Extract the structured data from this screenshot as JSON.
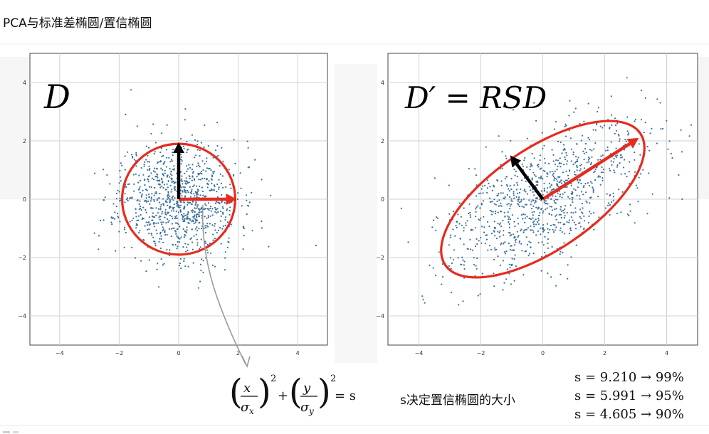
{
  "page": {
    "title": "PCA与标准差椭圆/置信椭圆"
  },
  "panels": [
    {
      "id": "left",
      "label": "D",
      "ellipse_color": "#e62b1e",
      "arrow_colors": {
        "long": "#e62b1e",
        "short": "#000000"
      }
    },
    {
      "id": "right",
      "label": "D′ = RSD",
      "ellipse_color": "#e62b1e",
      "arrow_colors": {
        "long": "#e62b1e",
        "short": "#000000"
      }
    }
  ],
  "chart_data": [
    {
      "type": "scatter",
      "panel": "left",
      "x_ticks": [
        "−4",
        "−2",
        "0",
        "2",
        "4"
      ],
      "y_ticks": [
        "4",
        "2",
        "0",
        "−2",
        "−4"
      ],
      "xlim": [
        -5,
        5
      ],
      "ylim": [
        -5,
        5
      ],
      "grid": true,
      "point_color": "#3b6f9a",
      "distribution": {
        "sigma_x": 1.0,
        "sigma_y": 1.0,
        "rotation_deg": 0,
        "count": 1000
      },
      "ellipse": {
        "cx": 0,
        "cy": 0,
        "rx": 1.9,
        "ry": 1.9,
        "rotation_deg": 0
      },
      "arrows": [
        {
          "from": [
            0,
            0
          ],
          "to": [
            1.95,
            0
          ],
          "color": "#e62b1e"
        },
        {
          "from": [
            0,
            0
          ],
          "to": [
            0,
            1.95
          ],
          "color": "#000000"
        }
      ]
    },
    {
      "type": "scatter",
      "panel": "right",
      "x_ticks": [
        "−4",
        "−2",
        "0",
        "2",
        "4"
      ],
      "y_ticks": [
        "4",
        "2",
        "0",
        "−2",
        "−4"
      ],
      "xlim": [
        -5,
        5
      ],
      "ylim": [
        -5,
        5
      ],
      "grid": true,
      "point_color": "#3b6f9a",
      "distribution": {
        "sigma_major": 1.9,
        "sigma_minor": 0.9,
        "rotation_deg": 34,
        "count": 1000
      },
      "ellipse": {
        "cx": 0,
        "cy": 0,
        "rx": 3.8,
        "ry": 1.75,
        "rotation_deg": 34
      },
      "arrows": [
        {
          "from": [
            0,
            0
          ],
          "to": [
            3.1,
            2.1
          ],
          "color": "#e62b1e"
        },
        {
          "from": [
            0,
            0
          ],
          "to": [
            -1.05,
            1.5
          ],
          "color": "#000000"
        }
      ]
    }
  ],
  "annotations": {
    "confidence_text": "s决定置信椭圆的大小",
    "confidence_levels": [
      {
        "s": "9.210",
        "percent": "99%"
      },
      {
        "s": "5.991",
        "percent": "95%"
      },
      {
        "s": "4.605",
        "percent": "90%"
      }
    ],
    "formula": {
      "num1": "x",
      "den1": "σ",
      "sub1": "x",
      "num2": "y",
      "den2": "σ",
      "sub2": "y",
      "exp": "2",
      "plus": "+",
      "eq": "= s"
    },
    "connector_color": "#9b9b9b"
  }
}
